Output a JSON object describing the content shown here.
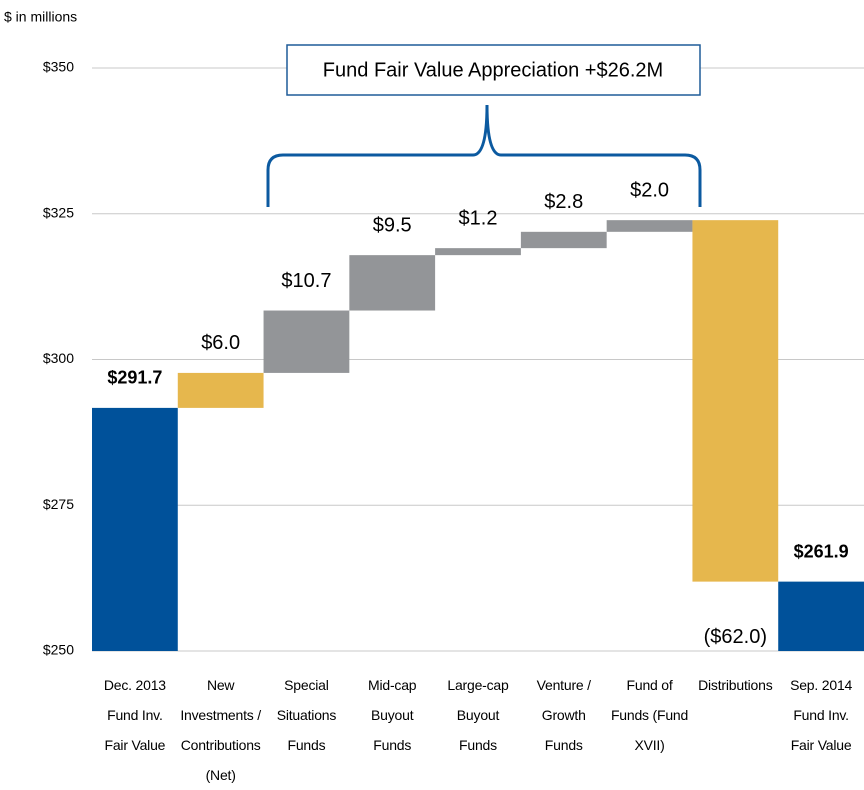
{
  "chart_data": {
    "type": "waterfall",
    "unit_label": "$ in millions",
    "annotation": "Fund Fair Value Appreciation +$26.2M",
    "categories": [
      "Dec. 2013\nFund Inv.\nFair Value",
      "New\nInvestments /\nContributions\n(Net)",
      "Special\nSituations\nFunds",
      "Mid-cap\nBuyout\nFunds",
      "Large-cap\nBuyout\nFunds",
      "Venture /\nGrowth\nFunds",
      "Fund of\nFunds (Fund\nXVII)",
      "Distributions",
      "Sep. 2014\nFund Inv.\nFair Value"
    ],
    "measures": [
      "total",
      "relative",
      "relative",
      "relative",
      "relative",
      "relative",
      "relative",
      "relative",
      "total"
    ],
    "values": [
      291.7,
      6.0,
      10.7,
      9.5,
      1.2,
      2.8,
      2.0,
      -62.0,
      261.9
    ],
    "value_labels": [
      "$291.7",
      "$6.0",
      "$10.7",
      "$9.5",
      "$1.2",
      "$2.8",
      "$2.0",
      "($62.0)",
      "$261.9"
    ],
    "colors": [
      "#00519a",
      "#e6b74d",
      "#939598",
      "#939598",
      "#939598",
      "#939598",
      "#939598",
      "#e6b74d",
      "#00519a"
    ],
    "ylim": [
      250,
      350
    ],
    "yticks": [
      {
        "value": 250,
        "label": "$250"
      },
      {
        "value": 275,
        "label": "$275"
      },
      {
        "value": 300,
        "label": "$300"
      },
      {
        "value": 325,
        "label": "$325"
      },
      {
        "value": 350,
        "label": "$350"
      }
    ],
    "grid": true
  }
}
